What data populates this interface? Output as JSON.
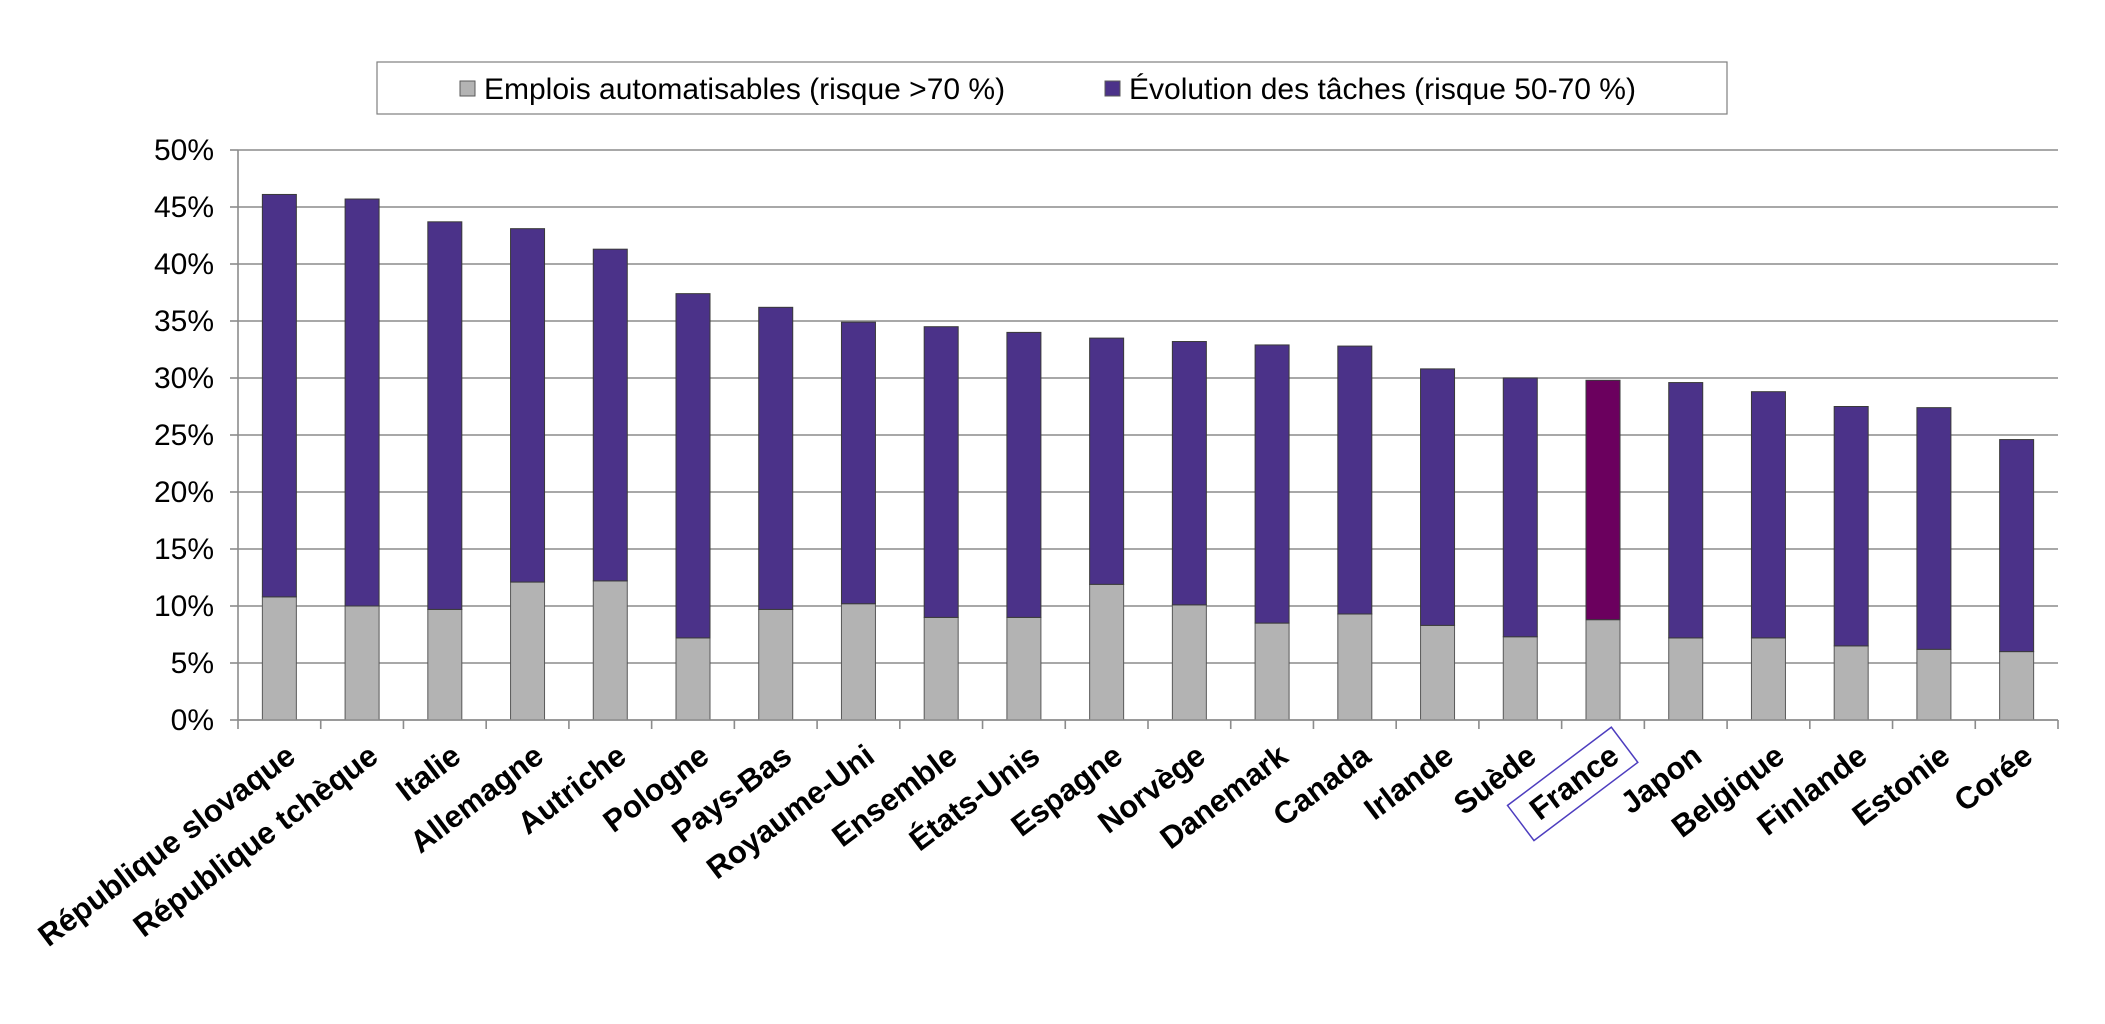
{
  "chart_data": {
    "type": "bar",
    "stacked": true,
    "categories": [
      "République slovaque",
      "République tchèque",
      "Italie",
      "Allemagne",
      "Autriche",
      "Pologne",
      "Pays-Bas",
      "Royaume-Uni",
      "Ensemble",
      "États-Unis",
      "Espagne",
      "Norvège",
      "Danemark",
      "Canada",
      "Irlande",
      "Suède",
      "France",
      "Japon",
      "Belgique",
      "Finlande",
      "Estonie",
      "Corée"
    ],
    "series": [
      {
        "name": "Emplois automatisables (risque >70 %)",
        "color": "#b3b3b3",
        "values": [
          10.8,
          10.0,
          9.7,
          12.1,
          12.2,
          7.2,
          9.7,
          10.2,
          9.0,
          9.0,
          11.9,
          10.1,
          8.5,
          9.3,
          8.3,
          7.3,
          8.8,
          7.2,
          7.2,
          6.5,
          6.2,
          6.0
        ]
      },
      {
        "name": "Évolution des tâches (risque 50-70 %)",
        "color": "#4b3289",
        "values": [
          35.3,
          35.7,
          34.0,
          31.0,
          29.1,
          30.2,
          26.5,
          24.7,
          25.5,
          25.0,
          21.6,
          23.1,
          24.4,
          23.5,
          22.5,
          22.7,
          21.0,
          22.4,
          21.6,
          21.0,
          21.2,
          18.6
        ]
      }
    ],
    "highlight": {
      "category": "France",
      "color": "#6b005e",
      "outline_color": "#4d3dbf"
    },
    "yticks": [
      "0%",
      "5%",
      "10%",
      "15%",
      "20%",
      "25%",
      "30%",
      "35%",
      "40%",
      "45%",
      "50%"
    ],
    "ylim": [
      0,
      50
    ],
    "grid": true,
    "legend_position": "top-center",
    "title": "",
    "xlabel": "",
    "ylabel": ""
  }
}
